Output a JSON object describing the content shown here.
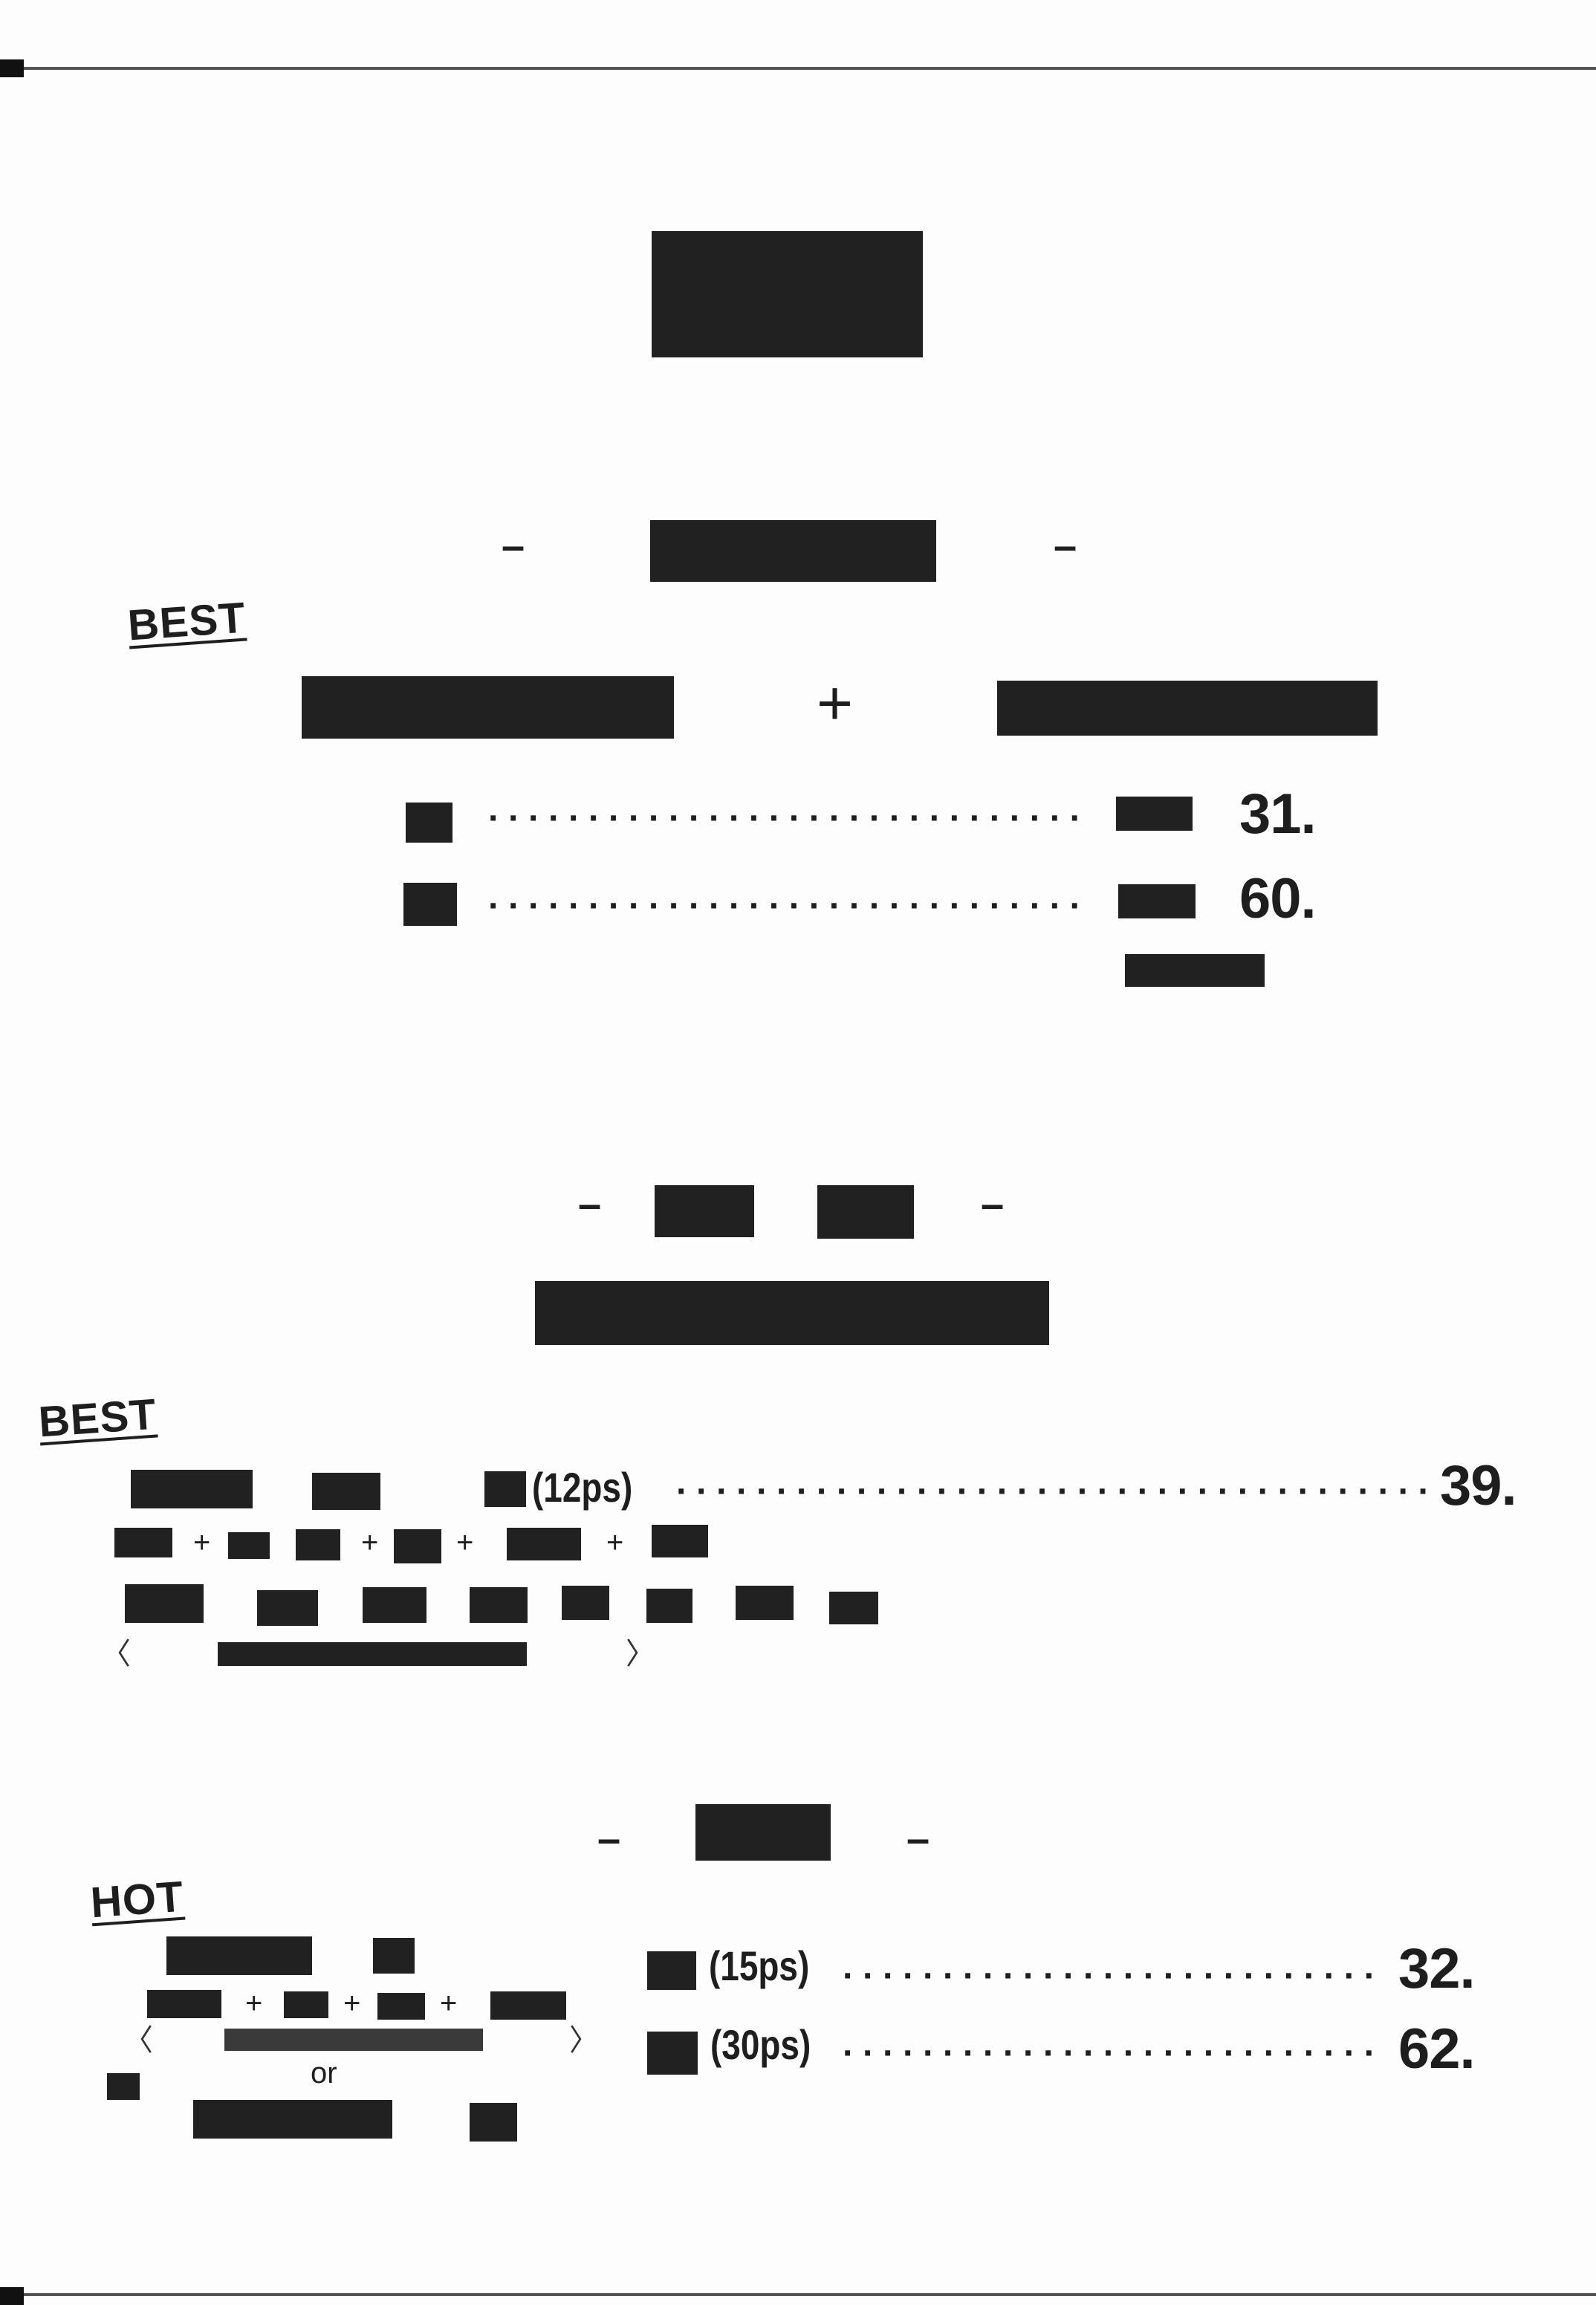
{
  "colors": {
    "ink": "#212121",
    "rule": "#555555",
    "paper": "#fdfdfd"
  },
  "section1": {
    "badge": "BEST",
    "plus": "+",
    "rows": [
      {
        "price": "31."
      },
      {
        "price": "60."
      }
    ]
  },
  "section2": {
    "badge": "BEST",
    "item": {
      "portion": "(12ps)",
      "price": "39."
    },
    "plus": "+"
  },
  "section3": {
    "badge": "HOT",
    "or": "or",
    "plus": "+",
    "rows": [
      {
        "portion": "(15ps)",
        "price": "32."
      },
      {
        "portion": "(30ps)",
        "price": "62."
      }
    ]
  },
  "dash": "–",
  "dot_leader": "·····································································"
}
